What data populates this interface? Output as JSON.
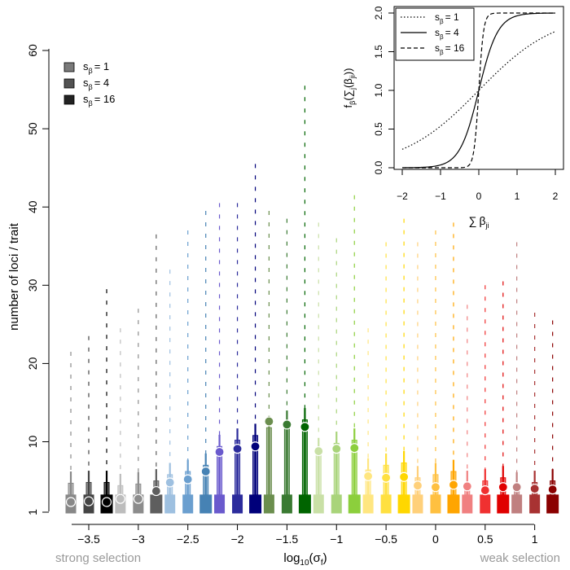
{
  "chart_data": [
    {
      "type": "boxplot",
      "title": "",
      "xlabel_base": "log",
      "xlabel_sub": "10",
      "xlabel_arg": "(σ",
      "xlabel_arg_sub": "f",
      "xlabel_close": ")",
      "ylabel": "number of loci / trait",
      "x_ticks": [
        -3.5,
        -3,
        -2.5,
        -2,
        -1.5,
        -1,
        -0.5,
        0,
        0.5,
        1
      ],
      "x_tick_labels": [
        "−3.5",
        "−3",
        "−2.5",
        "−2",
        "−1.5",
        "−1",
        "−0.5",
        "0",
        "0.5",
        "1"
      ],
      "y_ticks": [
        1,
        10,
        20,
        30,
        40,
        50,
        60
      ],
      "y_tick_labels": [
        "1",
        "10",
        "20",
        "30",
        "40",
        "50",
        "60"
      ],
      "xlim": [
        -3.85,
        1.3
      ],
      "ylim": [
        1,
        60
      ],
      "left_note": "strong selection",
      "right_note": "weak selection",
      "legend": {
        "position": "top-left",
        "prefix": "s",
        "sub": "β",
        "entries": [
          {
            "value": "= 1",
            "color": "#7a7a7a"
          },
          {
            "value": "= 4",
            "color": "#525252"
          },
          {
            "value": "= 16",
            "color": "#222222"
          }
        ]
      },
      "groups": [
        {
          "x": -3.5,
          "colors": [
            "#888888",
            "#444444",
            "#000000"
          ],
          "means": [
            2.3,
            2.4,
            2.3
          ],
          "max": [
            21.5,
            23.5,
            29.5
          ],
          "q3": [
            4.7,
            4.8,
            4.8
          ]
        },
        {
          "x": -3.0,
          "colors": [
            "#bdbdbd",
            "#8c8c8c",
            "#5e5e5e"
          ],
          "means": [
            2.7,
            2.7,
            3.7
          ],
          "max": [
            24.5,
            27.0,
            36.5
          ],
          "q3": [
            4.4,
            4.6,
            5.0
          ]
        },
        {
          "x": -2.5,
          "colors": [
            "#9ec0e0",
            "#6b9fcf",
            "#4682b4"
          ],
          "means": [
            4.8,
            5.2,
            6.2
          ],
          "max": [
            32.0,
            37.0,
            39.5
          ],
          "q3": [
            5.8,
            6.2,
            7.0
          ]
        },
        {
          "x": -2.0,
          "colors": [
            "#6a5acd",
            "#2c2c9c",
            "#00007a"
          ],
          "means": [
            8.7,
            9.1,
            9.4
          ],
          "max": [
            40.5,
            40.5,
            45.5
          ],
          "q3": [
            9.4,
            10.2,
            10.8
          ]
        },
        {
          "x": -1.5,
          "colors": [
            "#6b8e4e",
            "#3a7a32",
            "#006400"
          ],
          "means": [
            12.6,
            12.2,
            11.9
          ],
          "max": [
            39.5,
            38.5,
            55.5
          ],
          "q3": [
            11.8,
            12.5,
            12.8
          ]
        },
        {
          "x": -1.0,
          "colors": [
            "#c9e0a6",
            "#a9d47a",
            "#8ccf3c"
          ],
          "means": [
            8.8,
            9.1,
            9.2
          ],
          "max": [
            38.0,
            36.0,
            41.5
          ],
          "q3": [
            9.0,
            9.8,
            10.2
          ]
        },
        {
          "x": -0.5,
          "colors": [
            "#ffe680",
            "#ffe040",
            "#ffd700"
          ],
          "means": [
            5.6,
            5.4,
            5.5
          ],
          "max": [
            24.5,
            35.5,
            38.5
          ],
          "q3": [
            6.4,
            7.0,
            7.3
          ]
        },
        {
          "x": 0.0,
          "colors": [
            "#ffd07a",
            "#ffc040",
            "#ffa500"
          ],
          "means": [
            4.4,
            4.2,
            4.5
          ],
          "max": [
            35.5,
            37.0,
            38.0
          ],
          "q3": [
            5.4,
            5.8,
            6.2
          ]
        },
        {
          "x": 0.5,
          "colors": [
            "#f08080",
            "#f03030",
            "#e00000"
          ],
          "means": [
            4.3,
            3.8,
            4.2
          ],
          "max": [
            27.5,
            30.0,
            30.5
          ],
          "q3": [
            4.8,
            5.0,
            5.4
          ]
        },
        {
          "x": 1.0,
          "colors": [
            "#c08080",
            "#a83232",
            "#8b0000"
          ],
          "means": [
            4.2,
            4.0,
            3.9
          ],
          "max": [
            35.5,
            26.5,
            25.5
          ],
          "q3": [
            4.6,
            4.8,
            5.0
          ]
        }
      ]
    },
    {
      "type": "line",
      "title": "",
      "xlabel_sym": "∑",
      "xlabel_var": "β",
      "xlabel_sub": "ji",
      "ylabel_pre": "f",
      "ylabel_sub": "β",
      "ylabel_arg": "(∑",
      "ylabel_arg_sub": "j",
      "ylabel_arg2": "(β",
      "ylabel_arg2_sub": "ji",
      "ylabel_close": "))",
      "xlim": [
        -2,
        2
      ],
      "ylim": [
        0,
        2
      ],
      "x_ticks": [
        -2,
        -1,
        0,
        1,
        2
      ],
      "x_tick_labels": [
        "−2",
        "−1",
        "0",
        "1",
        "2"
      ],
      "y_ticks": [
        0.0,
        0.5,
        1.0,
        1.5,
        2.0
      ],
      "y_tick_labels": [
        "0.0",
        "0.5",
        "1.0",
        "1.5",
        "2.0"
      ],
      "legend": {
        "position": "top-left",
        "prefix": "s",
        "sub": "β",
        "entries": [
          {
            "value": "= 1",
            "dash": "dotted",
            "s": 1
          },
          {
            "value": "= 4",
            "dash": "solid",
            "s": 4
          },
          {
            "value": "= 16",
            "dash": "dashed",
            "s": 16
          }
        ]
      },
      "function": "2/(1+exp(-s*x))"
    }
  ]
}
